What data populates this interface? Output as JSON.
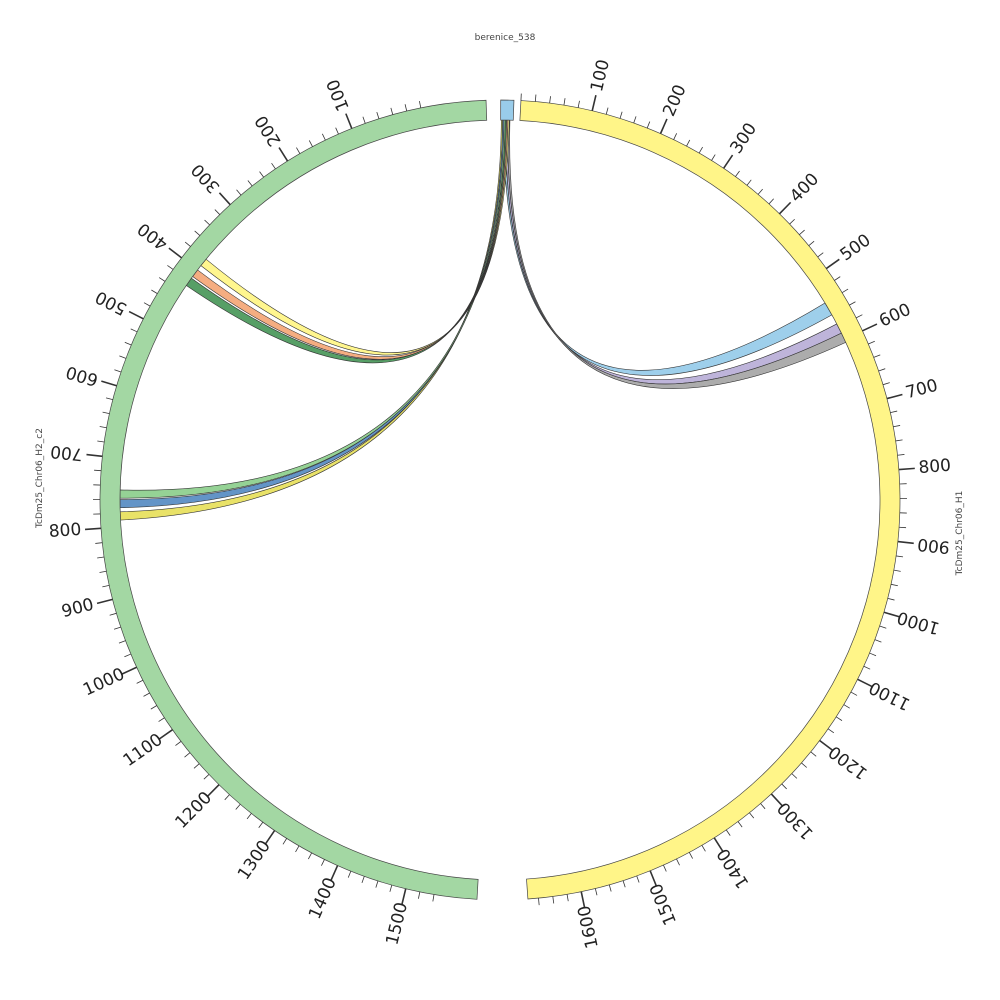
{
  "title": "",
  "segments": [
    {
      "id": "berenice",
      "label": "berenice_538",
      "color": "#99CCEA",
      "ticks": []
    },
    {
      "id": "h1",
      "label": "TcDm25_Chr06_H1",
      "color": "#FFF588",
      "ticks": [
        "100",
        "200",
        "300",
        "400",
        "500",
        "600",
        "700",
        "800",
        "900",
        "1000",
        "1100",
        "1200",
        "1300",
        "1400",
        "1500",
        "1600"
      ]
    },
    {
      "id": "h2",
      "label": "TcDm25_Chr06_H2_c2",
      "color": "#A3D7A3",
      "ticks": [
        "100",
        "200",
        "300",
        "400",
        "500",
        "600",
        "700",
        "800",
        "900",
        "1000",
        "1100",
        "1200",
        "1300",
        "1400",
        "1500"
      ]
    }
  ],
  "links": [
    {
      "from": "berenice",
      "to": "TcDm25_Chr06_H1",
      "to_range": [
        540,
        560
      ],
      "color": "#99CCEA"
    },
    {
      "from": "berenice",
      "to": "TcDm25_Chr06_H1",
      "to_range": [
        575,
        590
      ],
      "color": "#BBB0D8"
    },
    {
      "from": "berenice",
      "to": "TcDm25_Chr06_H1",
      "to_range": [
        590,
        605
      ],
      "color": "#A8A8A8"
    },
    {
      "from": "berenice",
      "to": "TcDm25_Chr06_H2_c2",
      "to_range": [
        778,
        790
      ],
      "color": "#E8E060"
    },
    {
      "from": "berenice",
      "to": "TcDm25_Chr06_H2_c2",
      "to_range": [
        760,
        772
      ],
      "color": "#5B8EC4"
    },
    {
      "from": "berenice",
      "to": "TcDm25_Chr06_H2_c2",
      "to_range": [
        746,
        758
      ],
      "color": "#8FD08F"
    },
    {
      "from": "berenice",
      "to": "TcDm25_Chr06_H2_c2",
      "to_range": [
        415,
        428
      ],
      "color": "#4E9A5E"
    },
    {
      "from": "berenice",
      "to": "TcDm25_Chr06_H2_c2",
      "to_range": [
        400,
        412
      ],
      "color": "#F4A97A"
    },
    {
      "from": "berenice",
      "to": "TcDm25_Chr06_H2_c2",
      "to_range": [
        380,
        392
      ],
      "color": "#FFF588"
    }
  ]
}
